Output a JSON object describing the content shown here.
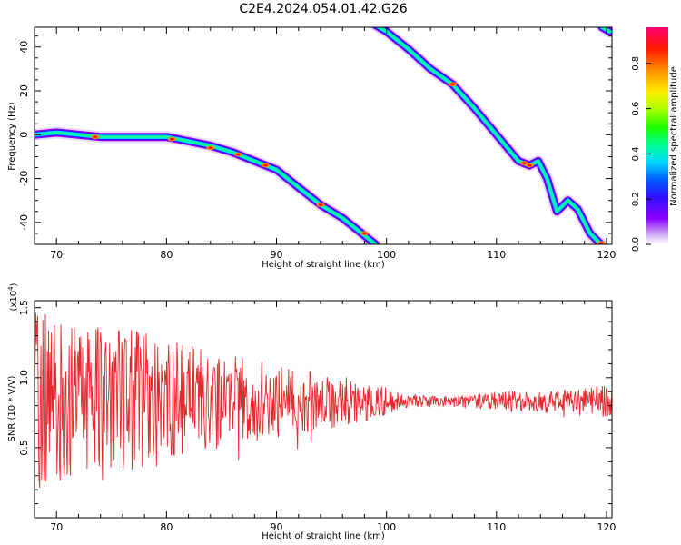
{
  "title": "C2E4.2024.054.01.42.G26",
  "chart_data": [
    {
      "type": "heatmap",
      "xlabel": "Height of straight line (km)",
      "ylabel": "Frequency (Hz)",
      "xlim": [
        68,
        120.5
      ],
      "ylim": [
        -50,
        49
      ],
      "x_ticks": [
        "70",
        "80",
        "90",
        "100",
        "110",
        "120"
      ],
      "y_ticks": [
        "-40",
        "-20",
        "0",
        "20",
        "40"
      ],
      "colorbar": {
        "label": "Normalized spectral amplitude",
        "range": [
          0,
          0.96
        ],
        "ticks": [
          "0.0",
          "0.2",
          "0.4",
          "0.6",
          "0.8"
        ],
        "colormap": [
          "#ffffff",
          "#d4b8f4",
          "#8a00ff",
          "#2c10ff",
          "#0060ff",
          "#00d8ff",
          "#00ff90",
          "#20ff00",
          "#a8ff00",
          "#fff000",
          "#ff9000",
          "#ff1a00",
          "#ff0070"
        ]
      },
      "series": [
        {
          "points": [
            [
              68,
              0
            ],
            [
              70,
              1
            ],
            [
              72,
              0
            ],
            [
              74,
              -1
            ],
            [
              76,
              -1
            ],
            [
              78,
              -1
            ],
            [
              80,
              -1
            ],
            [
              82,
              -3
            ],
            [
              84,
              -5
            ],
            [
              86,
              -8
            ],
            [
              88,
              -12
            ],
            [
              90,
              -16
            ],
            [
              92,
              -24
            ],
            [
              94,
              -32
            ],
            [
              96,
              -38
            ],
            [
              98,
              -46
            ],
            [
              99,
              -50
            ]
          ]
        },
        {
          "points": [
            [
              99,
              50
            ],
            [
              100,
              47
            ],
            [
              102,
              39
            ],
            [
              104,
              30
            ],
            [
              106,
              23
            ],
            [
              108,
              12
            ],
            [
              110,
              0
            ],
            [
              112,
              -12
            ],
            [
              113,
              -14
            ],
            [
              113.8,
              -12
            ],
            [
              114.6,
              -20
            ],
            [
              115.5,
              -35
            ],
            [
              116.5,
              -30
            ],
            [
              117.4,
              -34
            ],
            [
              118.5,
              -45
            ],
            [
              119.5,
              -50
            ]
          ]
        },
        {
          "points": [
            [
              119.6,
              49
            ],
            [
              120.3,
              47
            ]
          ]
        }
      ],
      "peaks": [
        [
          73.5,
          -1
        ],
        [
          80.5,
          -2
        ],
        [
          84,
          -6
        ],
        [
          86.5,
          -9
        ],
        [
          89,
          -14
        ],
        [
          94,
          -32
        ],
        [
          98,
          -45
        ],
        [
          106,
          23
        ],
        [
          112.5,
          -13
        ],
        [
          113,
          -14
        ],
        [
          119.5,
          -49.5
        ]
      ]
    },
    {
      "type": "line",
      "xlabel": "Height of straight line (km)",
      "ylabel": "SNR (10 * V/V)",
      "y_multiplier": "(x10",
      "y_multiplier_exp": "4",
      "y_multiplier_close": ")",
      "xlim": [
        68,
        120.5
      ],
      "ylim": [
        0,
        1.55
      ],
      "x_ticks": [
        "70",
        "80",
        "90",
        "100",
        "110",
        "120"
      ],
      "y_ticks": [
        "0.5",
        "1.0",
        "1.5"
      ],
      "line_color": "#e8262c",
      "center": 0.83,
      "envelope": [
        [
          68,
          0.65
        ],
        [
          72,
          0.6
        ],
        [
          78,
          0.5
        ],
        [
          84,
          0.36
        ],
        [
          90,
          0.26
        ],
        [
          96,
          0.18
        ],
        [
          100,
          0.1
        ],
        [
          102,
          0.04
        ],
        [
          106,
          0.04
        ],
        [
          110,
          0.07
        ],
        [
          114,
          0.08
        ],
        [
          118,
          0.1
        ],
        [
          120.5,
          0.12
        ]
      ],
      "seed": 7
    }
  ]
}
